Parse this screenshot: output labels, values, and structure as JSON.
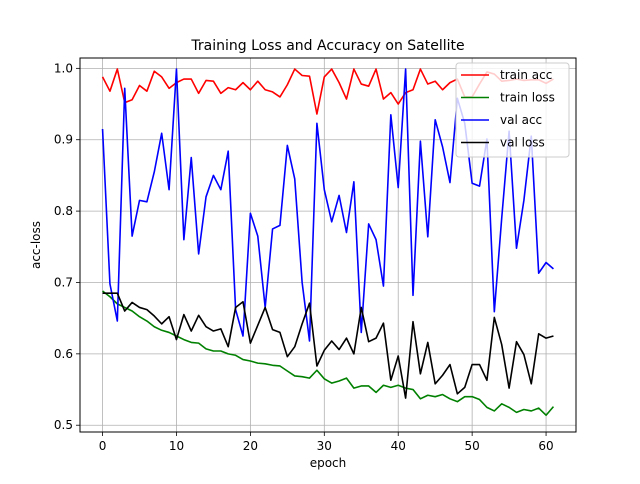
{
  "chart_data": {
    "type": "line",
    "title": "Training Loss and Accuracy on Satellite",
    "xlabel": "epoch",
    "ylabel": "acc-loss",
    "xlim": [
      -3.05,
      64.05
    ],
    "ylim": [
      0.4905,
      1.0145
    ],
    "x_ticks": [
      0,
      10,
      20,
      30,
      40,
      50,
      60
    ],
    "y_ticks": [
      0.5,
      0.6,
      0.7,
      0.8,
      0.9,
      1.0
    ],
    "x_tick_labels": [
      "0",
      "10",
      "20",
      "30",
      "40",
      "50",
      "60"
    ],
    "y_tick_labels": [
      "0.5",
      "0.6",
      "0.7",
      "0.8",
      "0.9",
      "1.0"
    ],
    "grid": true,
    "legend_position": "top-right",
    "x": [
      0,
      1,
      2,
      3,
      4,
      5,
      6,
      7,
      8,
      9,
      10,
      11,
      12,
      13,
      14,
      15,
      16,
      17,
      18,
      19,
      20,
      21,
      22,
      23,
      24,
      25,
      26,
      27,
      28,
      29,
      30,
      31,
      32,
      33,
      34,
      35,
      36,
      37,
      38,
      39,
      40,
      41,
      42,
      43,
      44,
      45,
      46,
      47,
      48,
      49,
      50,
      51,
      52,
      53,
      54,
      55,
      56,
      57,
      58,
      59,
      60,
      61
    ],
    "series": [
      {
        "name": "train acc",
        "color": "#ff0000",
        "values": [
          0.988,
          0.968,
          0.999,
          0.952,
          0.956,
          0.976,
          0.968,
          0.996,
          0.988,
          0.972,
          0.98,
          0.985,
          0.985,
          0.965,
          0.983,
          0.982,
          0.965,
          0.973,
          0.97,
          0.98,
          0.97,
          0.982,
          0.97,
          0.967,
          0.96,
          0.977,
          0.999,
          0.99,
          0.989,
          0.936,
          0.988,
          0.999,
          0.98,
          0.957,
          0.999,
          0.978,
          0.975,
          0.999,
          0.957,
          0.966,
          0.95,
          0.966,
          0.97,
          0.999,
          0.978,
          0.982,
          0.97,
          0.98,
          0.985,
          0.96,
          0.96,
          0.978,
          0.995,
          0.992,
          0.982,
          0.983,
          0.985,
          0.983,
          0.984,
          0.984,
          0.979,
          0.985
        ]
      },
      {
        "name": "train loss",
        "color": "#008000",
        "values": [
          0.688,
          0.68,
          0.67,
          0.665,
          0.66,
          0.652,
          0.646,
          0.638,
          0.633,
          0.63,
          0.625,
          0.62,
          0.616,
          0.615,
          0.607,
          0.604,
          0.604,
          0.6,
          0.598,
          0.592,
          0.59,
          0.587,
          0.586,
          0.584,
          0.583,
          0.576,
          0.569,
          0.568,
          0.566,
          0.577,
          0.565,
          0.559,
          0.562,
          0.566,
          0.552,
          0.555,
          0.555,
          0.546,
          0.556,
          0.553,
          0.556,
          0.552,
          0.55,
          0.537,
          0.542,
          0.54,
          0.543,
          0.537,
          0.533,
          0.54,
          0.54,
          0.536,
          0.525,
          0.52,
          0.53,
          0.525,
          0.518,
          0.522,
          0.52,
          0.524,
          0.514,
          0.526
        ]
      },
      {
        "name": "val acc",
        "color": "#0000ff",
        "values": [
          0.915,
          0.698,
          0.646,
          0.972,
          0.765,
          0.815,
          0.813,
          0.855,
          0.909,
          0.83,
          0.999,
          0.76,
          0.875,
          0.74,
          0.82,
          0.85,
          0.83,
          0.884,
          0.662,
          0.625,
          0.797,
          0.765,
          0.665,
          0.775,
          0.78,
          0.892,
          0.845,
          0.7,
          0.618,
          0.923,
          0.83,
          0.785,
          0.822,
          0.77,
          0.841,
          0.63,
          0.782,
          0.76,
          0.695,
          0.935,
          0.833,
          0.999,
          0.682,
          0.898,
          0.764,
          0.928,
          0.89,
          0.84,
          0.958,
          0.923,
          0.839,
          0.835,
          0.901,
          0.659,
          0.79,
          0.912,
          0.748,
          0.815,
          0.905,
          0.713,
          0.728,
          0.719
        ]
      },
      {
        "name": "val loss",
        "color": "#000000",
        "values": [
          0.685,
          0.685,
          0.685,
          0.66,
          0.672,
          0.665,
          0.662,
          0.653,
          0.642,
          0.652,
          0.62,
          0.655,
          0.632,
          0.654,
          0.638,
          0.632,
          0.635,
          0.61,
          0.665,
          0.673,
          0.615,
          0.64,
          0.665,
          0.634,
          0.63,
          0.596,
          0.61,
          0.642,
          0.671,
          0.583,
          0.605,
          0.618,
          0.606,
          0.622,
          0.6,
          0.665,
          0.617,
          0.622,
          0.643,
          0.563,
          0.597,
          0.538,
          0.645,
          0.572,
          0.616,
          0.558,
          0.57,
          0.585,
          0.544,
          0.553,
          0.585,
          0.585,
          0.563,
          0.651,
          0.613,
          0.552,
          0.617,
          0.599,
          0.558,
          0.628,
          0.622,
          0.625
        ]
      }
    ]
  }
}
